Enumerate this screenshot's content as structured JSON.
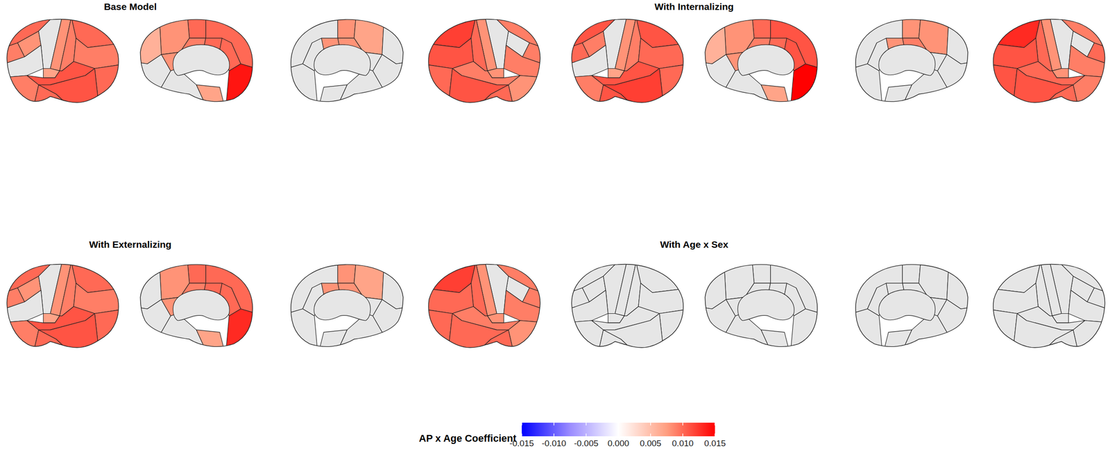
{
  "chart_data": {
    "type": "brain_map",
    "panels": [
      {
        "title": "Base Model",
        "values": [
          [
            0.01,
            0.009,
            0.008,
            null,
            0.008,
            0.01,
            0.009,
            0.009,
            0.01,
            null,
            0.009,
            0.007,
            0.011,
            0.011,
            0.01
          ],
          [
            0.01,
            0.01,
            0.008,
            0.006,
            null,
            0.009,
            0.01,
            0.01,
            0.008,
            0.014,
            null,
            0.007
          ],
          [
            null,
            0.008,
            0.007,
            null,
            null,
            0.008,
            0.008,
            null,
            null,
            null,
            null,
            null
          ],
          [
            0.009,
            0.009,
            null,
            null,
            0.008,
            0.012,
            0.01,
            0.011,
            0.01,
            0.009,
            0.008,
            0.008,
            0.009,
            0.011,
            0.01
          ]
        ]
      },
      {
        "title": "With Internalizing",
        "values": [
          [
            0.011,
            0.01,
            0.009,
            null,
            0.008,
            0.011,
            0.009,
            0.01,
            0.01,
            null,
            0.009,
            0.007,
            0.011,
            0.012,
            0.011
          ],
          [
            0.011,
            0.01,
            0.008,
            0.006,
            null,
            0.009,
            0.01,
            0.011,
            0.008,
            0.015,
            null,
            0.007
          ],
          [
            null,
            0.008,
            0.008,
            null,
            null,
            0.009,
            0.008,
            null,
            null,
            null,
            null,
            null
          ],
          [
            0.009,
            0.01,
            null,
            null,
            0.008,
            0.013,
            0.01,
            0.011,
            0.011,
            0.009,
            0.009,
            0.008,
            0.01,
            0.011,
            0.01
          ]
        ]
      },
      {
        "title": "With Externalizing",
        "values": [
          [
            0.01,
            0.009,
            0.008,
            null,
            0.008,
            0.01,
            0.009,
            0.009,
            0.01,
            null,
            0.009,
            0.007,
            0.011,
            0.011,
            0.01
          ],
          [
            0.01,
            0.01,
            0.008,
            null,
            null,
            0.009,
            0.01,
            0.01,
            0.008,
            0.013,
            null,
            0.007
          ],
          [
            null,
            0.008,
            0.007,
            null,
            null,
            0.008,
            0.008,
            null,
            null,
            null,
            null,
            null
          ],
          [
            0.009,
            0.009,
            null,
            null,
            0.008,
            0.012,
            0.01,
            0.01,
            0.01,
            0.009,
            0.008,
            0.008,
            0.009,
            0.01,
            0.01
          ]
        ]
      },
      {
        "title": "With Age x Sex",
        "values": [
          [
            null,
            null,
            null,
            null,
            null,
            null,
            null,
            null,
            null,
            null,
            null,
            null,
            null,
            null,
            null
          ],
          [
            null,
            null,
            null,
            null,
            null,
            null,
            null,
            null,
            null,
            null,
            null,
            null
          ],
          [
            null,
            null,
            null,
            null,
            null,
            null,
            null,
            null,
            null,
            null,
            null,
            null
          ],
          [
            null,
            null,
            null,
            null,
            null,
            null,
            null,
            null,
            null,
            null,
            null,
            null,
            null,
            null,
            null
          ]
        ]
      }
    ],
    "colorbar": {
      "label": "AP x Age Coefficient",
      "range": [
        -0.015,
        0.015
      ],
      "ticks": [
        -0.015,
        {
          "value": -0.01,
          "label": "-0.010"
        },
        -0.005,
        {
          "value": 0,
          "label": "0.000"
        },
        0.005,
        {
          "value": 0.01,
          "label": "0.010"
        },
        0.015
      ]
    }
  }
}
